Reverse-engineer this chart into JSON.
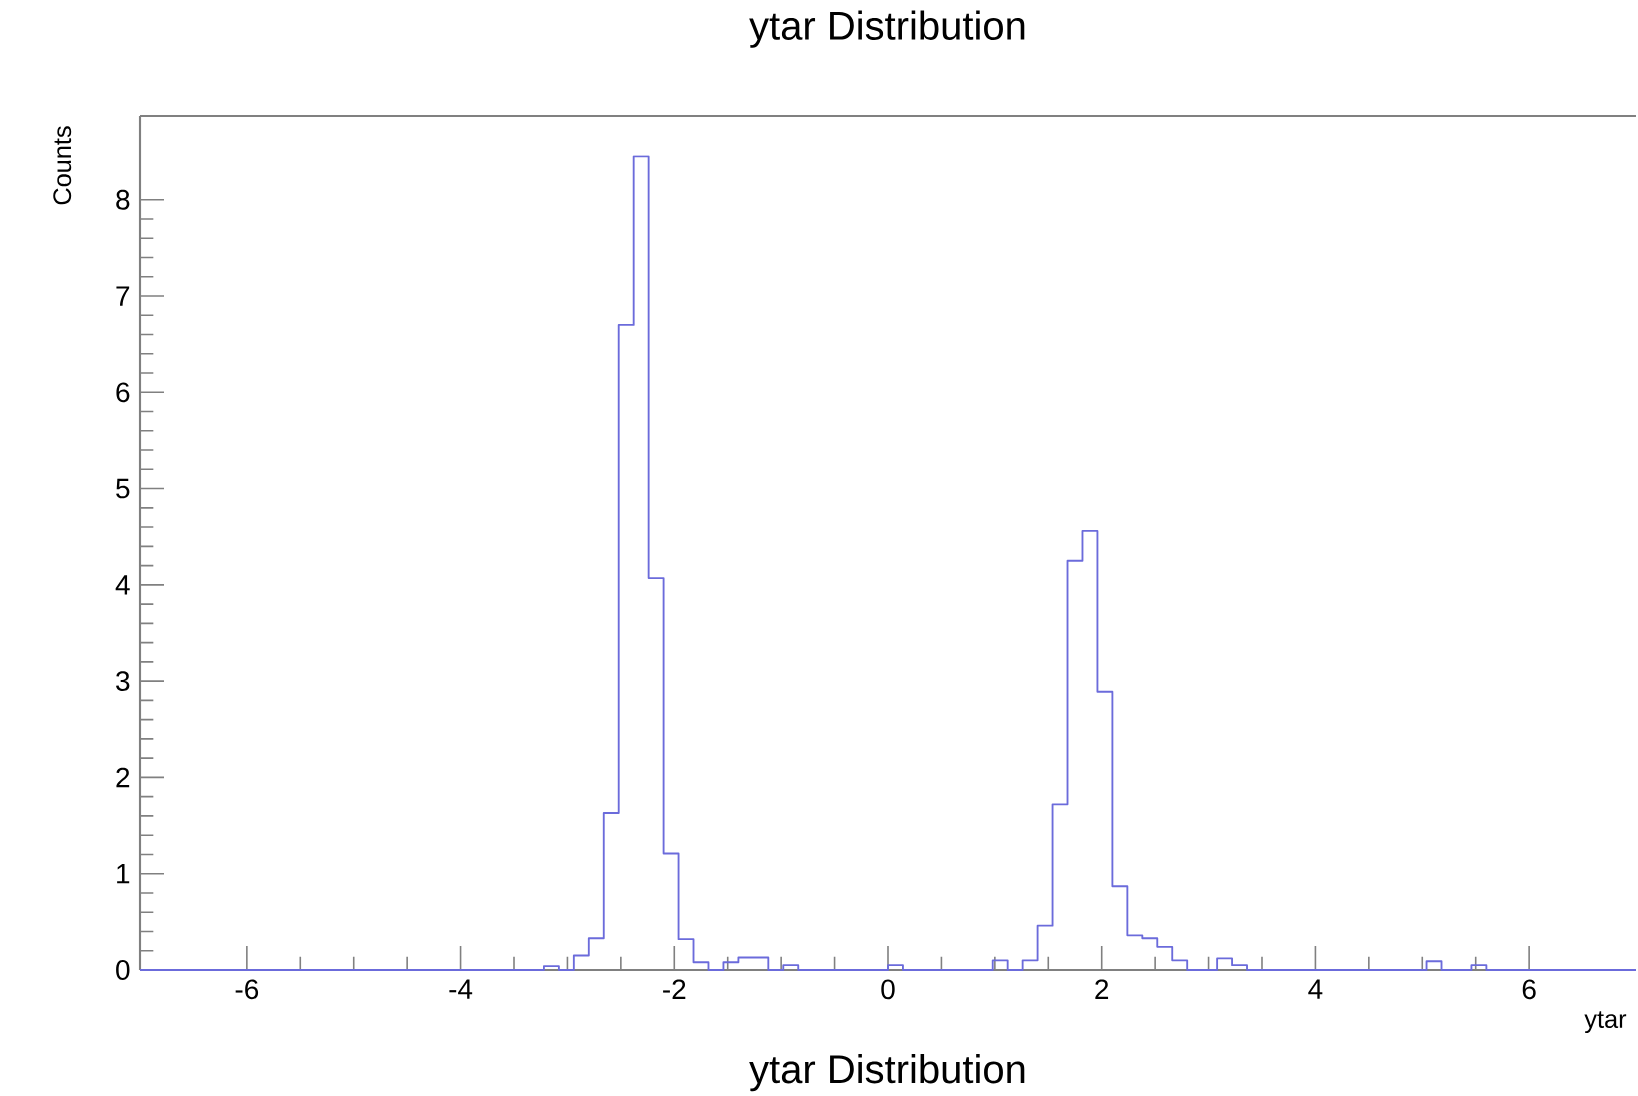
{
  "chart_data": {
    "type": "histogram",
    "title": "ytar Distribution",
    "xlabel": "ytar",
    "ylabel": "Counts",
    "annotations": [
      "ytar Distribution"
    ],
    "color": "#6b6bdb",
    "bins": [
      -7.0,
      -6.86,
      -6.72,
      -6.58,
      -6.44,
      -6.3,
      -6.16,
      -6.02,
      -5.88,
      -5.74,
      -5.6,
      -5.46,
      -5.32,
      -5.18,
      -5.04,
      -4.9,
      -4.76,
      -4.62,
      -4.48,
      -4.34,
      -4.2,
      -4.06,
      -3.92,
      -3.78,
      -3.64,
      -3.5,
      -3.36,
      -3.22,
      -3.08,
      -2.94,
      -2.8,
      -2.66,
      -2.52,
      -2.38,
      -2.24,
      -2.1,
      -1.96,
      -1.82,
      -1.68,
      -1.54,
      -1.4,
      -1.26,
      -1.12,
      -0.98,
      -0.84,
      -0.7,
      -0.56,
      -0.42,
      -0.28,
      -0.14,
      0.0,
      0.14,
      0.28,
      0.42,
      0.56,
      0.7,
      0.84,
      0.98,
      1.12,
      1.26,
      1.4,
      1.54,
      1.68,
      1.82,
      1.96,
      2.1,
      2.24,
      2.38,
      2.52,
      2.66,
      2.8,
      2.94,
      3.08,
      3.22,
      3.36,
      3.5,
      3.64,
      3.78,
      3.92,
      4.06,
      4.2,
      4.34,
      4.48,
      4.62,
      4.76,
      4.9,
      5.04,
      5.18,
      5.32,
      5.46,
      5.6,
      5.74,
      5.88,
      6.02,
      6.16,
      6.3,
      6.44,
      6.58,
      6.72,
      6.86,
      7.0
    ],
    "values": [
      0,
      0,
      0,
      0,
      0,
      0,
      0,
      0,
      0,
      0,
      0,
      0,
      0,
      0,
      0,
      0,
      0,
      0,
      0,
      0,
      0,
      0,
      0,
      0,
      0,
      0,
      0,
      0.04,
      0,
      0.15,
      0.33,
      1.63,
      6.7,
      8.45,
      4.07,
      1.21,
      0.32,
      0.08,
      0,
      0.08,
      0.13,
      0.13,
      0,
      0.05,
      0,
      0,
      0,
      0,
      0,
      0,
      0.05,
      0,
      0,
      0,
      0,
      0,
      0,
      0.1,
      0,
      0.1,
      0.46,
      1.72,
      4.25,
      4.56,
      2.89,
      0.87,
      0.36,
      0.33,
      0.24,
      0.1,
      0,
      0,
      0.12,
      0.05,
      0,
      0,
      0,
      0,
      0,
      0,
      0,
      0,
      0,
      0,
      0,
      0,
      0.09,
      0,
      0,
      0.05,
      0,
      0,
      0,
      0,
      0,
      0,
      0,
      0,
      0,
      0
    ],
    "xlim": [
      -7,
      7
    ],
    "ylim": [
      0,
      8.87
    ],
    "xticks": [
      -6,
      -4,
      -2,
      0,
      2,
      4,
      6
    ],
    "yticks": [
      0,
      1,
      2,
      3,
      4,
      5,
      6,
      7,
      8
    ]
  }
}
